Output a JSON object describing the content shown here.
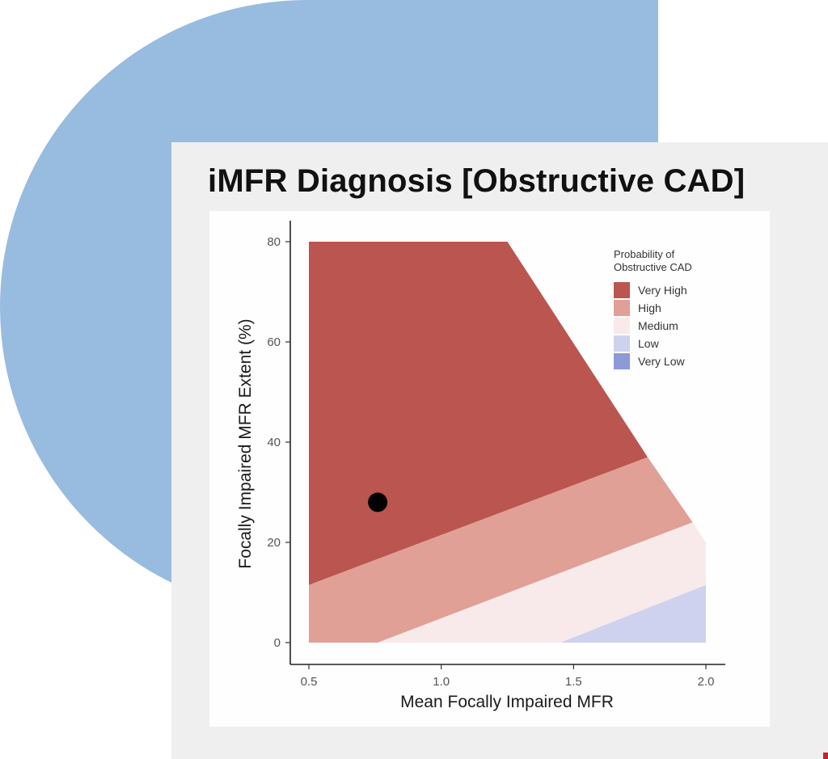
{
  "colors": {
    "blob": "#98bcdf",
    "card": "#efefef",
    "very_high": "#bb5550",
    "high": "#e0a096",
    "medium": "#f8eaea",
    "low": "#ced2ee",
    "very_low": "#8c9ad8",
    "point": "#000000"
  },
  "chart_data": {
    "type": "area",
    "title": "iMFR Diagnosis [Obstructive CAD]",
    "xlabel": "Mean Focally Impaired MFR",
    "ylabel": "Focally Impaired MFR Extent (%)",
    "xlim": [
      0.5,
      2.0
    ],
    "ylim": [
      0,
      80
    ],
    "xticks": [
      0.5,
      1.0,
      1.5,
      2.0
    ],
    "xtick_labels": [
      "0.5",
      "1.0",
      "1.5",
      "2.0"
    ],
    "yticks": [
      0,
      20,
      40,
      60,
      80
    ],
    "ytick_labels": [
      "0",
      "20",
      "40",
      "60",
      "80"
    ],
    "legend": {
      "title": "Probability of\nObstructive CAD",
      "position": "top-right",
      "entries": [
        {
          "key": "very_high",
          "label": "Very High"
        },
        {
          "key": "high",
          "label": "High"
        },
        {
          "key": "medium",
          "label": "Medium"
        },
        {
          "key": "low",
          "label": "Low"
        },
        {
          "key": "very_low",
          "label": "Very Low"
        }
      ]
    },
    "regions": [
      {
        "key": "very_high",
        "label": "Very High",
        "polygon": [
          [
            0.5,
            80
          ],
          [
            1.25,
            80
          ],
          [
            1.78,
            37
          ],
          [
            0.5,
            11.5
          ]
        ]
      },
      {
        "key": "high",
        "label": "High",
        "polygon": [
          [
            0.5,
            11.5
          ],
          [
            1.78,
            37
          ],
          [
            1.95,
            24
          ],
          [
            0.76,
            0
          ],
          [
            0.5,
            0
          ]
        ]
      },
      {
        "key": "medium",
        "label": "Medium",
        "polygon": [
          [
            0.76,
            0
          ],
          [
            1.95,
            24
          ],
          [
            2.0,
            20
          ],
          [
            2.0,
            11.5
          ],
          [
            1.45,
            0
          ]
        ]
      },
      {
        "key": "low",
        "label": "Low",
        "polygon": [
          [
            1.45,
            0
          ],
          [
            2.0,
            11.5
          ],
          [
            2.0,
            0
          ]
        ]
      }
    ],
    "points": [
      {
        "x": 0.76,
        "y": 28
      }
    ]
  }
}
